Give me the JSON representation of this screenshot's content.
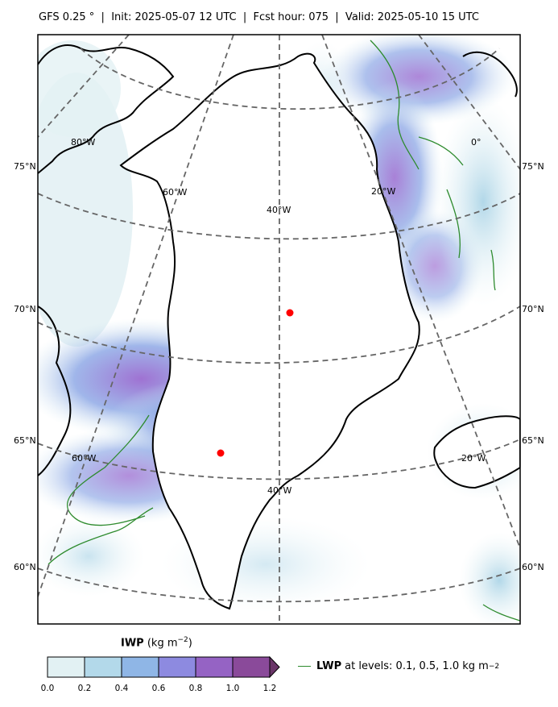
{
  "title": {
    "model": "GFS 0.25",
    "degree": "°",
    "sep1": " | ",
    "init": "Init: 2025-05-07 12 UTC",
    "fcst": "Fcst hour: 075",
    "valid": "Valid: 2025-05-10 15 UTC",
    "full": "GFS 0.25 °  |  Init: 2025-05-07 12 UTC  |  Fcst hour: 075  |  Valid: 2025-05-10 15 UTC"
  },
  "map": {
    "projection": "stereographic, centred on Greenland",
    "gridline_color": "#666666",
    "coastline_color": "#000000",
    "lwp_contour_color": "#2e8b2e",
    "point_marker_color": "#ff0000",
    "left_lat_labels": [
      "75°N",
      "70°N",
      "65°N",
      "60°N"
    ],
    "right_lat_labels": [
      "75°N",
      "70°N",
      "65°N",
      "60°N"
    ],
    "inner_lon_labels": [
      "80°W",
      "60°W",
      "40°W",
      "20°W",
      "0°",
      "60°W",
      "40°W",
      "20°W"
    ],
    "markers": [
      {
        "name": "summit-point",
        "lat": 72.6,
        "lon": -38.5
      },
      {
        "name": "southwest-point",
        "lat": 66.0,
        "lon": -44.0
      }
    ]
  },
  "colorbar": {
    "title_bold": "IWP",
    "title_unit": " (kg m",
    "title_exp": "−2",
    "title_close": ")",
    "ticks": [
      "0.0",
      "0.2",
      "0.4",
      "0.6",
      "0.8",
      "1.0",
      "1.2"
    ],
    "colors": [
      "#e2f1f3",
      "#b3d9ea",
      "#8fb6e6",
      "#8d8ae0",
      "#9563c4",
      "#8a4a9a",
      "#6a3568"
    ],
    "extend": "max"
  },
  "legend": {
    "label_bold": "LWP",
    "label_rest": "at levels: 0.1, 0.5, 1.0  kg m",
    "label_exp": "−2"
  }
}
